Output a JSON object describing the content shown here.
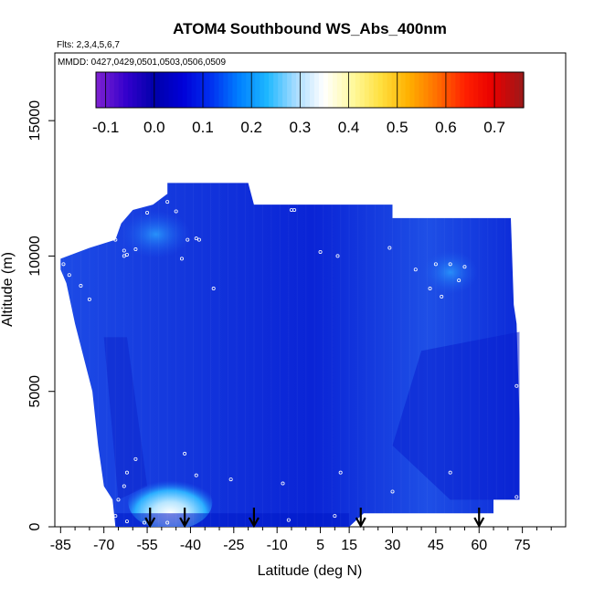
{
  "chart_data": {
    "type": "heatmap",
    "title": "ATOM4 Southbound WS_Abs_400nm",
    "subtitle_flights": "Flts: 2,3,4,5,6,7",
    "subtitle_dates": "MMDD: 0427,0429,0501,0503,0506,0509",
    "xlabel": "Latitude (deg N)",
    "ylabel": "Altitude (m)",
    "xlim": [
      -87,
      90
    ],
    "ylim": [
      0,
      17500
    ],
    "x_ticks": [
      -85,
      -70,
      -55,
      -40,
      -25,
      -10,
      5,
      15,
      30,
      45,
      60,
      75
    ],
    "x_tick_labels": [
      "-85",
      "-70",
      "-55",
      "-40",
      "-25",
      "-10",
      "5",
      "15",
      "30",
      "45",
      "60",
      "75"
    ],
    "x_minor_ticks": [
      -80,
      -75,
      -65,
      -60,
      -50,
      -45,
      -35,
      -30,
      -20,
      -15,
      -5,
      0,
      10,
      20,
      25,
      35,
      40,
      50,
      55,
      65,
      70,
      80,
      85
    ],
    "y_ticks": [
      0,
      5000,
      10000,
      15000
    ],
    "y_tick_labels": [
      "0",
      "5000",
      "10000",
      "15000"
    ],
    "colorbar": {
      "min": -0.12,
      "max": 0.76,
      "ticks": [
        -0.1,
        0.0,
        0.1,
        0.2,
        0.3,
        0.4,
        0.5,
        0.6,
        0.7
      ],
      "tick_labels": [
        "-0.1",
        "0.0",
        "0.1",
        "0.2",
        "0.3",
        "0.4",
        "0.5",
        "0.6",
        "0.7"
      ],
      "colors": [
        "#7a1fd0",
        "#3300cc",
        "#0000aa",
        "#0000d8",
        "#0030f0",
        "#0080ff",
        "#1eb8ff",
        "#a8dcff",
        "#ffffff",
        "#fffaa0",
        "#ffe040",
        "#ffb000",
        "#ff7000",
        "#ff2000",
        "#e80000",
        "#a01818"
      ]
    },
    "profile_markers_lat": [
      -54,
      -42,
      -18,
      19,
      60
    ],
    "sample_points": [
      [
        -84,
        9700
      ],
      [
        -82,
        9300
      ],
      [
        -78,
        8900
      ],
      [
        -75,
        8400
      ],
      [
        -70,
        11000
      ],
      [
        -66,
        10600
      ],
      [
        -63,
        10200
      ],
      [
        -63,
        10000
      ],
      [
        -62,
        10050
      ],
      [
        -59,
        10250
      ],
      [
        -55,
        11600
      ],
      [
        -48,
        12000
      ],
      [
        -45,
        11650
      ],
      [
        -43,
        9900
      ],
      [
        -41,
        10600
      ],
      [
        -38,
        10650
      ],
      [
        -37,
        10600
      ],
      [
        -32,
        8800
      ],
      [
        -15,
        12150
      ],
      [
        -5,
        11700
      ],
      [
        -4,
        11700
      ],
      [
        5,
        10150
      ],
      [
        11,
        10000
      ],
      [
        29,
        10300
      ],
      [
        38,
        9500
      ],
      [
        43,
        8800
      ],
      [
        45,
        9700
      ],
      [
        47,
        8500
      ],
      [
        50,
        9700
      ],
      [
        53,
        9100
      ],
      [
        55,
        9600
      ],
      [
        73,
        11400
      ],
      [
        73,
        5200
      ],
      [
        73,
        1100
      ],
      [
        50,
        2000
      ],
      [
        30,
        1300
      ],
      [
        12,
        2000
      ],
      [
        10,
        400
      ],
      [
        -6,
        250
      ],
      [
        -8,
        1600
      ],
      [
        -26,
        1750
      ],
      [
        -38,
        1900
      ],
      [
        -42,
        2700
      ],
      [
        -59,
        2500
      ],
      [
        -62,
        2000
      ],
      [
        -63,
        1500
      ],
      [
        -65,
        1000
      ],
      [
        -66,
        400
      ],
      [
        -62,
        200
      ],
      [
        -56,
        150
      ],
      [
        -48,
        150
      ]
    ]
  }
}
